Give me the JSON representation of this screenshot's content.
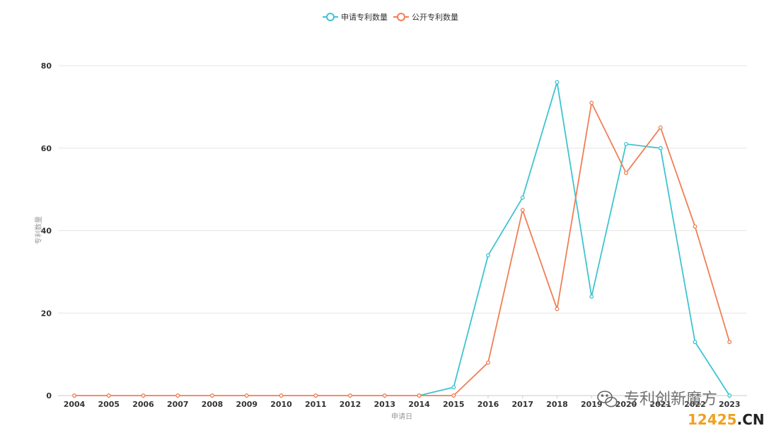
{
  "chart_data": {
    "type": "line",
    "title": "",
    "xlabel": "申请日",
    "ylabel": "专利数量",
    "ylim": [
      0,
      80
    ],
    "yticks": [
      0,
      20,
      40,
      60,
      80
    ],
    "grid": true,
    "legend_position": "top-center",
    "categories": [
      "2004",
      "2005",
      "2006",
      "2007",
      "2008",
      "2009",
      "2010",
      "2011",
      "2012",
      "2013",
      "2014",
      "2015",
      "2016",
      "2017",
      "2018",
      "2019",
      "2020",
      "2021",
      "2022",
      "2023"
    ],
    "series": [
      {
        "name": "申请专利数量",
        "color": "#3ec4d0",
        "values": [
          null,
          null,
          null,
          null,
          null,
          null,
          null,
          null,
          null,
          null,
          0,
          2,
          34,
          48,
          76,
          24,
          61,
          60,
          13,
          0
        ]
      },
      {
        "name": "公开专利数量",
        "color": "#f07f55",
        "values": [
          0,
          0,
          0,
          0,
          0,
          0,
          0,
          0,
          0,
          0,
          0,
          0,
          8,
          45,
          21,
          71,
          54,
          65,
          41,
          13
        ]
      }
    ]
  },
  "watermark": {
    "text": "专利创新魔方",
    "icon": "wechat-icon"
  },
  "brand": {
    "number": "12425",
    "suffix": ".CN"
  }
}
